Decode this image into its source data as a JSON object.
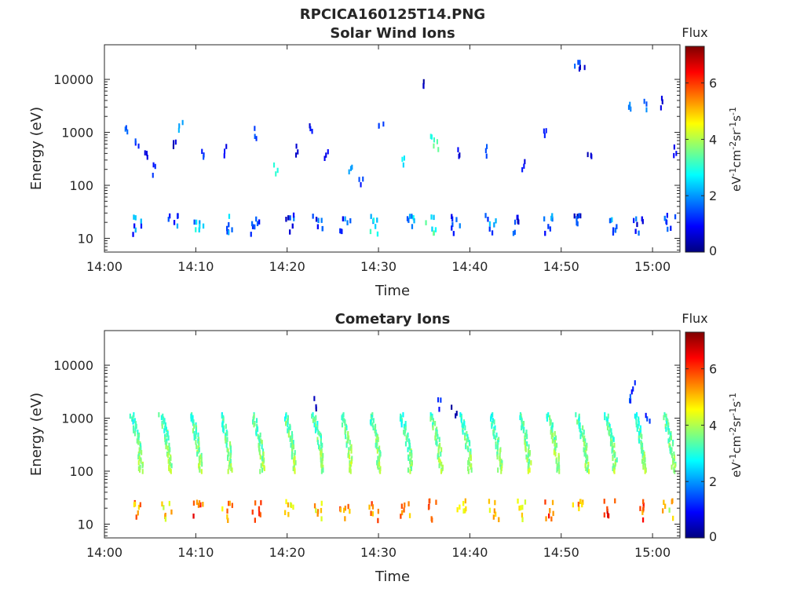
{
  "figure_title": "RPCICA160125T14.PNG",
  "colormap": [
    "#00007f",
    "#0000ff",
    "#007fff",
    "#00ffff",
    "#7fff7f",
    "#ffff00",
    "#ff7f00",
    "#ff0000",
    "#7f0000"
  ],
  "chart_data": [
    {
      "type": "heatmap",
      "title": "Solar Wind Ions",
      "xlabel": "Time",
      "ylabel": "Energy (eV)",
      "yscale": "log",
      "xlim": [
        "14:00",
        "15:03"
      ],
      "ylim": [
        5.5,
        45000
      ],
      "xticks": [
        "14:00",
        "14:10",
        "14:20",
        "14:30",
        "14:40",
        "14:50",
        "15:00"
      ],
      "yticks": [
        "10",
        "100",
        "1000",
        "10000"
      ],
      "colorbar": {
        "title": "Flux",
        "unit": "eV-1cm-2sr-1s-1",
        "range": [
          0,
          7.3
        ],
        "ticks": [
          "0",
          "2",
          "4",
          "6"
        ]
      },
      "x_unit": "minutes after 14:00",
      "low_energy_bursts": [
        {
          "t": 3.6,
          "flux": 1.6
        },
        {
          "t": 7.4,
          "flux": 1.4
        },
        {
          "t": 10.2,
          "flux": 2.2
        },
        {
          "t": 13.4,
          "flux": 1.8
        },
        {
          "t": 16.5,
          "flux": 1.3
        },
        {
          "t": 20.3,
          "flux": 1.2
        },
        {
          "t": 23.3,
          "flux": 1.2
        },
        {
          "t": 26.3,
          "flux": 1.5
        },
        {
          "t": 29.3,
          "flux": 2.4
        },
        {
          "t": 33.3,
          "flux": 2.2
        },
        {
          "t": 35.7,
          "flux": 2.8
        },
        {
          "t": 38.4,
          "flux": 1.3
        },
        {
          "t": 42.2,
          "flux": 2.0
        },
        {
          "t": 45.2,
          "flux": 1.2
        },
        {
          "t": 48.6,
          "flux": 1.4
        },
        {
          "t": 51.8,
          "flux": 1.1
        },
        {
          "t": 55.4,
          "flux": 1.8
        },
        {
          "t": 58.3,
          "flux": 1.2
        },
        {
          "t": 61.8,
          "flux": 1.5
        }
      ],
      "scatter_points": [
        {
          "t": 2.5,
          "e": 1250,
          "flux": 1.6
        },
        {
          "t": 3.4,
          "e": 800,
          "flux": 1.2
        },
        {
          "t": 4.5,
          "e": 380,
          "flux": 0.6
        },
        {
          "t": 5.2,
          "e": 220,
          "flux": 1.1
        },
        {
          "t": 7.5,
          "e": 650,
          "flux": 0.5
        },
        {
          "t": 8.2,
          "e": 1600,
          "flux": 2.3
        },
        {
          "t": 10.8,
          "e": 480,
          "flux": 1.3
        },
        {
          "t": 13.3,
          "e": 520,
          "flux": 1.0
        },
        {
          "t": 16.6,
          "e": 1100,
          "flux": 1.3
        },
        {
          "t": 18.6,
          "e": 220,
          "flux": 2.8
        },
        {
          "t": 20.8,
          "e": 500,
          "flux": 0.6
        },
        {
          "t": 22.5,
          "e": 1400,
          "flux": 0.8
        },
        {
          "t": 24.2,
          "e": 450,
          "flux": 0.9
        },
        {
          "t": 26.8,
          "e": 200,
          "flux": 2.2
        },
        {
          "t": 28.1,
          "e": 130,
          "flux": 1.2
        },
        {
          "t": 30.2,
          "e": 1500,
          "flux": 1.5
        },
        {
          "t": 32.5,
          "e": 300,
          "flux": 2.5
        },
        {
          "t": 34.6,
          "e": 9800,
          "flux": 0.4
        },
        {
          "t": 35.8,
          "e": 900,
          "flux": 2.9
        },
        {
          "t": 36.2,
          "e": 700,
          "flux": 3.3
        },
        {
          "t": 38.5,
          "e": 450,
          "flux": 0.7
        },
        {
          "t": 41.5,
          "e": 500,
          "flux": 1.3
        },
        {
          "t": 45.7,
          "e": 280,
          "flux": 0.9
        },
        {
          "t": 48.2,
          "e": 1100,
          "flux": 1.2
        },
        {
          "t": 51.7,
          "e": 19000,
          "flux": 1.5
        },
        {
          "t": 52.2,
          "e": 18000,
          "flux": 0.3
        },
        {
          "t": 53.0,
          "e": 420,
          "flux": 0.4
        },
        {
          "t": 57.5,
          "e": 3800,
          "flux": 1.9
        },
        {
          "t": 59.2,
          "e": 3800,
          "flux": 1.7
        },
        {
          "t": 61.0,
          "e": 4300,
          "flux": 0.8
        },
        {
          "t": 62.5,
          "e": 480,
          "flux": 1.0
        }
      ]
    },
    {
      "type": "heatmap",
      "title": "Cometary Ions",
      "xlabel": "Time",
      "ylabel": "Energy (eV)",
      "yscale": "log",
      "xlim": [
        "14:00",
        "15:03"
      ],
      "ylim": [
        5.5,
        45000
      ],
      "xticks": [
        "14:00",
        "14:10",
        "14:20",
        "14:30",
        "14:40",
        "14:50",
        "15:00"
      ],
      "yticks": [
        "10",
        "100",
        "1000",
        "10000"
      ],
      "colorbar": {
        "title": "Flux",
        "unit": "eV-1cm-2sr-1s-1",
        "range": [
          0,
          7.3
        ],
        "ticks": [
          "0",
          "2",
          "4",
          "6"
        ]
      },
      "x_unit": "minutes after 14:00",
      "arcs": [
        {
          "t": 2.9,
          "flux": 3.0
        },
        {
          "t": 6.1,
          "flux": 3.1
        },
        {
          "t": 9.4,
          "flux": 3.2
        },
        {
          "t": 12.7,
          "flux": 3.0
        },
        {
          "t": 16.2,
          "flux": 3.1
        },
        {
          "t": 19.7,
          "flux": 3.2
        },
        {
          "t": 22.8,
          "flux": 3.1
        },
        {
          "t": 25.9,
          "flux": 3.2
        },
        {
          "t": 29.0,
          "flux": 3.1
        },
        {
          "t": 32.4,
          "flux": 3.0
        },
        {
          "t": 35.7,
          "flux": 3.2
        },
        {
          "t": 38.9,
          "flux": 3.1
        },
        {
          "t": 42.2,
          "flux": 3.0
        },
        {
          "t": 45.4,
          "flux": 3.1
        },
        {
          "t": 48.5,
          "flux": 3.2
        },
        {
          "t": 51.7,
          "flux": 3.1
        },
        {
          "t": 54.8,
          "flux": 3.0
        },
        {
          "t": 58.0,
          "flux": 3.0
        },
        {
          "t": 61.2,
          "flux": 3.1
        }
      ],
      "low_energy_bursts": [
        {
          "t": 3.6,
          "flux": 5.3
        },
        {
          "t": 6.8,
          "flux": 4.8
        },
        {
          "t": 10.2,
          "flux": 5.9
        },
        {
          "t": 13.4,
          "flux": 5.3
        },
        {
          "t": 16.5,
          "flux": 5.8
        },
        {
          "t": 20.0,
          "flux": 5.0
        },
        {
          "t": 23.2,
          "flux": 4.7
        },
        {
          "t": 26.3,
          "flux": 5.6
        },
        {
          "t": 29.3,
          "flux": 5.5
        },
        {
          "t": 32.8,
          "flux": 5.3
        },
        {
          "t": 35.9,
          "flux": 5.9
        },
        {
          "t": 39.1,
          "flux": 4.9
        },
        {
          "t": 42.5,
          "flux": 4.8
        },
        {
          "t": 45.7,
          "flux": 4.7
        },
        {
          "t": 48.7,
          "flux": 5.6
        },
        {
          "t": 51.8,
          "flux": 4.9
        },
        {
          "t": 55.2,
          "flux": 6.0
        },
        {
          "t": 58.4,
          "flux": 5.6
        },
        {
          "t": 61.6,
          "flux": 4.6
        }
      ],
      "scatter_points": [
        {
          "t": 23.1,
          "e": 2200,
          "flux": 0.4
        },
        {
          "t": 36.7,
          "e": 2100,
          "flux": 1.1
        },
        {
          "t": 38.2,
          "e": 1600,
          "flux": 0.5
        },
        {
          "t": 57.8,
          "e": 4200,
          "flux": 0.9
        },
        {
          "t": 57.6,
          "e": 2400,
          "flux": 1.4
        },
        {
          "t": 59.4,
          "e": 1100,
          "flux": 1.2
        }
      ]
    }
  ]
}
